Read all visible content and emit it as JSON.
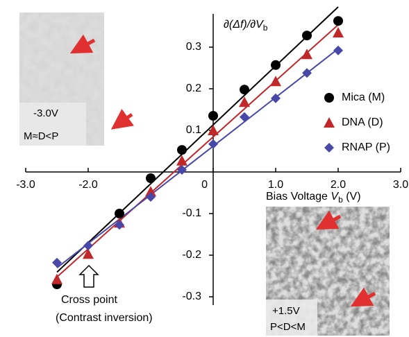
{
  "chart_data": {
    "type": "scatter",
    "y_label": [
      "∂(Δf)/∂V",
      "b"
    ],
    "x_label": [
      "Bias Voltage ",
      "V",
      "b",
      " (V)"
    ],
    "xlim": [
      -3.0,
      3.0
    ],
    "ylim": [
      -0.32,
      0.38
    ],
    "xticks": [
      {
        "value": -3,
        "label": "-3.0"
      },
      {
        "value": -2,
        "label": "-2.0"
      },
      0,
      {
        "value": 1,
        "label": "1.0"
      },
      {
        "value": 2,
        "label": "2.0"
      },
      {
        "value": 3,
        "label": "3.0"
      }
    ],
    "yticks": [
      -0.3,
      -0.2,
      -0.1,
      0.1,
      0.2,
      0.3
    ],
    "x": [
      -2.5,
      -2.0,
      -1.5,
      -1.0,
      -0.5,
      0,
      0.5,
      1.0,
      1.5,
      2.0
    ],
    "fit_lines": true,
    "series": [
      {
        "name": "Mica (M)",
        "color": "#000000",
        "marker": "circle",
        "values": [
          -0.27,
          null,
          -0.1,
          -0.015,
          0.053,
          0.135,
          0.198,
          0.257,
          0.328,
          0.363
        ]
      },
      {
        "name": "DNA (D)",
        "color": "#c0282a",
        "marker": "triangle",
        "values": [
          -0.258,
          -0.197,
          -0.122,
          -0.047,
          0.027,
          0.1,
          0.168,
          0.218,
          0.283,
          0.335
        ]
      },
      {
        "name": "RNAP (P)",
        "color": "#4848a8",
        "marker": "diamond",
        "values": [
          -0.218,
          -0.177,
          -0.127,
          -0.06,
          0.005,
          0.067,
          0.132,
          0.177,
          0.238,
          0.292
        ]
      }
    ],
    "annotations": {
      "cross_point": "Cross point",
      "contrast": "(Contrast inversion)"
    },
    "insets": [
      {
        "voltage": "-3.0V",
        "order": "M≈D<P"
      },
      {
        "voltage": "+1.5V",
        "order": "P<D<M"
      }
    ]
  }
}
